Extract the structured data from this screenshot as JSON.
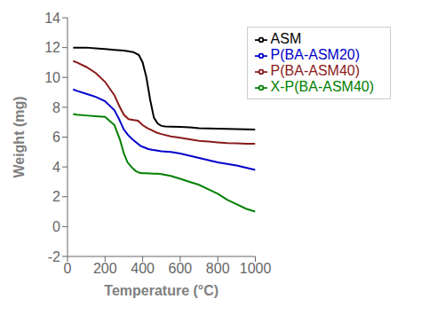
{
  "chart_data": {
    "type": "line",
    "xlabel": "Temperature (°C)",
    "ylabel": "Weight (mg)",
    "xlim": [
      0,
      1000
    ],
    "ylim": [
      -2,
      14
    ],
    "xticks": [
      0,
      200,
      400,
      600,
      800,
      1000
    ],
    "yticks": [
      -2,
      0,
      2,
      4,
      6,
      8,
      10,
      12,
      14
    ],
    "grid": false,
    "legend": "upper right",
    "series": [
      {
        "name": "ASM",
        "color": "#000000",
        "x": [
          30,
          50,
          100,
          150,
          200,
          250,
          300,
          350,
          380,
          400,
          420,
          440,
          460,
          480,
          500,
          520,
          550,
          600,
          650,
          700,
          750,
          800,
          850,
          900,
          950,
          1000
        ],
        "values": [
          12.0,
          12.0,
          12.0,
          11.95,
          11.9,
          11.85,
          11.8,
          11.7,
          11.5,
          11.0,
          10.0,
          8.5,
          7.3,
          6.9,
          6.75,
          6.72,
          6.7,
          6.68,
          6.65,
          6.6,
          6.58,
          6.56,
          6.55,
          6.53,
          6.52,
          6.5
        ]
      },
      {
        "name": "P(BA-ASM20)",
        "color": "#0000cc",
        "x": [
          30,
          50,
          100,
          150,
          200,
          250,
          275,
          300,
          325,
          350,
          370,
          390,
          410,
          430,
          450,
          500,
          550,
          600,
          650,
          700,
          750,
          800,
          850,
          900,
          950,
          1000
        ],
        "values": [
          9.2,
          9.1,
          8.9,
          8.7,
          8.4,
          7.8,
          7.2,
          6.5,
          6.1,
          5.8,
          5.6,
          5.4,
          5.3,
          5.2,
          5.15,
          5.05,
          5.0,
          4.9,
          4.75,
          4.6,
          4.45,
          4.3,
          4.2,
          4.1,
          3.95,
          3.8
        ]
      },
      {
        "name": "P(BA-ASM40)",
        "color": "#8b1a1a",
        "x": [
          30,
          50,
          100,
          150,
          200,
          250,
          275,
          300,
          325,
          350,
          375,
          400,
          425,
          450,
          475,
          500,
          550,
          600,
          650,
          700,
          750,
          800,
          850,
          900,
          950,
          1000
        ],
        "values": [
          11.1,
          11.0,
          10.7,
          10.3,
          9.7,
          8.8,
          8.1,
          7.5,
          7.2,
          7.15,
          7.1,
          6.8,
          6.6,
          6.45,
          6.3,
          6.2,
          6.05,
          5.95,
          5.85,
          5.75,
          5.7,
          5.65,
          5.6,
          5.58,
          5.56,
          5.55
        ]
      },
      {
        "name": "X-P(BA-ASM40)",
        "color": "#008000",
        "x": [
          30,
          50,
          100,
          150,
          200,
          250,
          280,
          300,
          320,
          340,
          360,
          380,
          400,
          420,
          440,
          460,
          480,
          500,
          550,
          600,
          650,
          700,
          750,
          800,
          850,
          900,
          950,
          1000
        ],
        "values": [
          7.55,
          7.5,
          7.45,
          7.4,
          7.35,
          6.8,
          5.8,
          4.9,
          4.3,
          4.0,
          3.75,
          3.62,
          3.58,
          3.57,
          3.56,
          3.55,
          3.54,
          3.52,
          3.4,
          3.2,
          3.0,
          2.8,
          2.5,
          2.2,
          1.8,
          1.5,
          1.2,
          1.0
        ]
      }
    ]
  }
}
